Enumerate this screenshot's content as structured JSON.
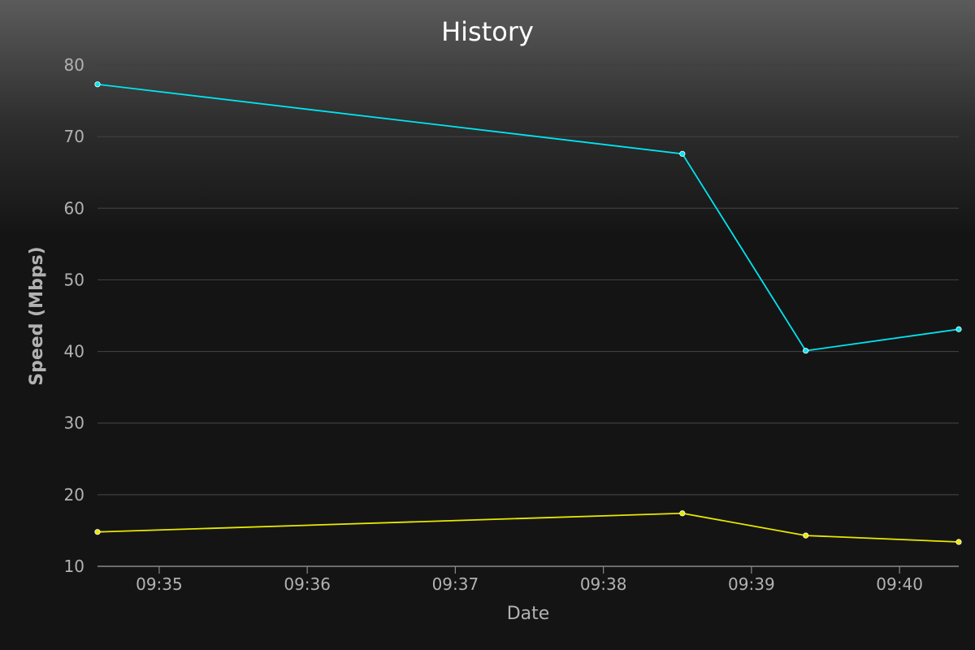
{
  "chart_data": {
    "type": "line",
    "title": "History",
    "xlabel": "Date",
    "ylabel": "Speed (Mbps)",
    "ylim": [
      10,
      80
    ],
    "yticks": [
      10,
      20,
      30,
      40,
      50,
      60,
      70,
      80
    ],
    "xlim": [
      "09:34:35",
      "09:40:24"
    ],
    "xticks": [
      "09:35",
      "09:36",
      "09:37",
      "09:38",
      "09:39",
      "09:40"
    ],
    "grid": true,
    "series": [
      {
        "color": "#00e5f0",
        "points": [
          {
            "x": "09:34:35",
            "y": 77.3
          },
          {
            "x": "09:38:32",
            "y": 67.6
          },
          {
            "x": "09:39:22",
            "y": 40.1
          },
          {
            "x": "09:40:24",
            "y": 43.1
          }
        ]
      },
      {
        "color": "#e8e800",
        "points": [
          {
            "x": "09:34:35",
            "y": 14.8
          },
          {
            "x": "09:38:32",
            "y": 17.4
          },
          {
            "x": "09:39:22",
            "y": 14.3
          },
          {
            "x": "09:40:24",
            "y": 13.4
          }
        ]
      }
    ]
  }
}
